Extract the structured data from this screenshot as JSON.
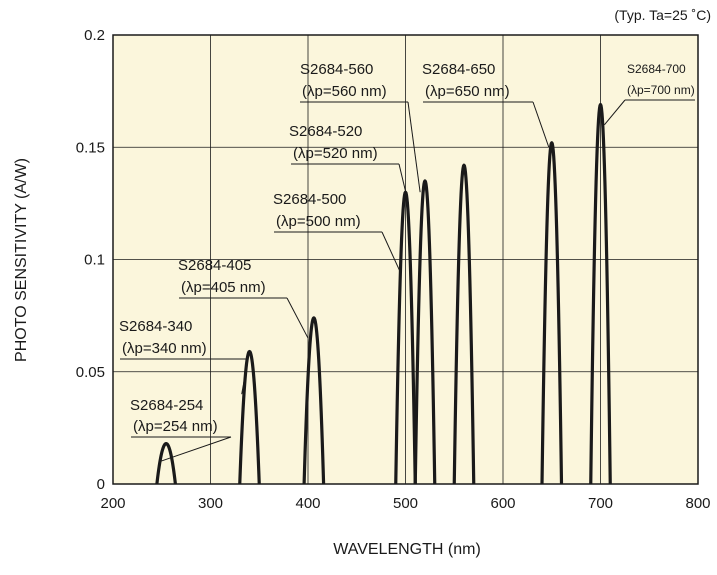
{
  "chart_data": {
    "type": "line",
    "conditions": "(Typ. Ta=25 ˚C)",
    "xlabel": "WAVELENGTH (nm)",
    "ylabel": "PHOTO SENSITIVITY (A/W)",
    "xlim": [
      200,
      800
    ],
    "ylim": [
      0,
      0.2
    ],
    "x_ticks": [
      200,
      300,
      400,
      500,
      600,
      700,
      800
    ],
    "y_ticks": [
      0,
      0.05,
      0.1,
      0.15,
      0.2
    ],
    "x_tick_labels": [
      "200",
      "300",
      "400",
      "500",
      "600",
      "700",
      "800"
    ],
    "y_tick_labels": [
      "0",
      "0.05",
      "0.1",
      "0.15",
      "0.2"
    ],
    "grid": true,
    "background_color": "#fbf6dc",
    "line_color": "#1a1a1a",
    "series": [
      {
        "name": "S2684-254",
        "peak_label": "(λp=254 nm)",
        "peak_wavelength": 254,
        "peak_sensitivity": 0.018,
        "range": [
          245,
          264
        ],
        "pointer": {
          "x": 248,
          "y": 0.01
        }
      },
      {
        "name": "S2684-340",
        "peak_label": "(λp=340 nm)",
        "peak_wavelength": 340,
        "peak_sensitivity": 0.059,
        "range": [
          330,
          350
        ],
        "pointer": {
          "x": 332,
          "y": 0.04
        }
      },
      {
        "name": "S2684-405",
        "peak_label": "(λp=405 nm)",
        "peak_wavelength": 405,
        "peak_sensitivity": 0.074,
        "range": [
          396,
          416
        ],
        "pointer": {
          "x": 400,
          "y": 0.065
        }
      },
      {
        "name": "S2684-500",
        "peak_label": "(λp=500 nm)",
        "peak_wavelength": 500,
        "peak_sensitivity": 0.13,
        "range": [
          490,
          510
        ],
        "pointer": {
          "x": 494,
          "y": 0.095
        }
      },
      {
        "name": "S2684-520",
        "peak_label": "(λp=520 nm)",
        "peak_wavelength": 520,
        "peak_sensitivity": 0.135,
        "range": [
          510,
          530
        ],
        "pointer": {
          "x": 503,
          "y": 0.125
        }
      },
      {
        "name": "S2684-560",
        "peak_label": "(λp=560 nm)",
        "peak_wavelength": 560,
        "peak_sensitivity": 0.142,
        "range": [
          550,
          570
        ],
        "pointer": {
          "x": 515,
          "y": 0.13
        }
      },
      {
        "name": "S2684-650",
        "peak_label": "(λp=650 nm)",
        "peak_wavelength": 650,
        "peak_sensitivity": 0.152,
        "range": [
          640,
          660
        ],
        "pointer": {
          "x": 647,
          "y": 0.15
        }
      },
      {
        "name": "S2684-700",
        "peak_label": "(λp=700 nm)",
        "peak_wavelength": 700,
        "peak_sensitivity": 0.169,
        "range": [
          690,
          710
        ],
        "pointer": {
          "x": 704,
          "y": 0.16
        }
      }
    ]
  }
}
